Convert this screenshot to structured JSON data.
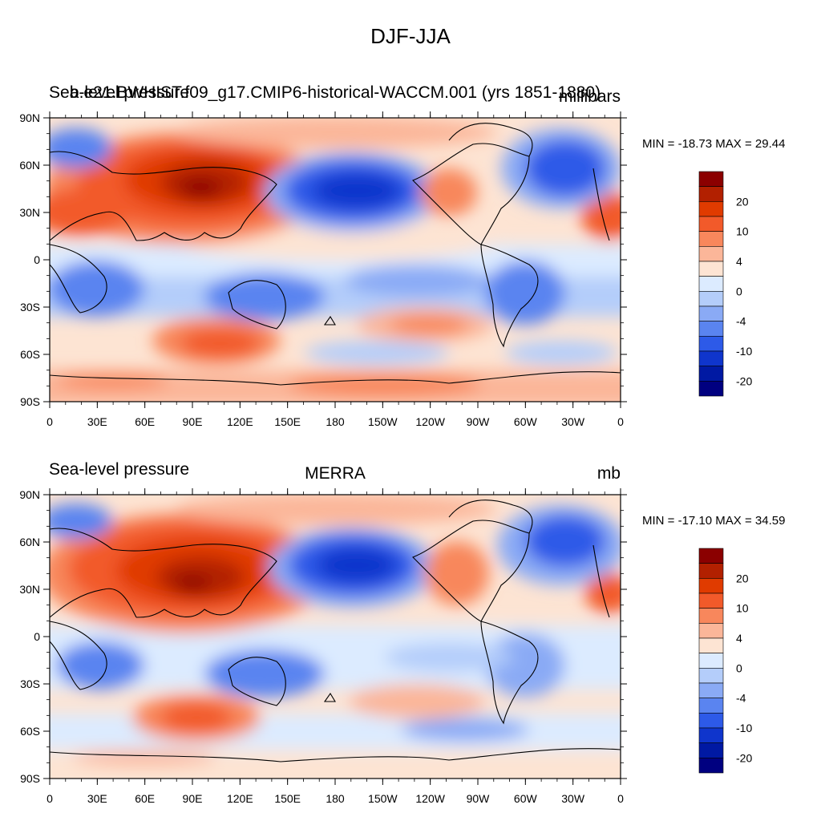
{
  "title": "DJF-JJA",
  "panels": [
    {
      "left_label": "Sea-level pressure",
      "center_label": "b.e21.BWHIST.f09_g17.CMIP6-historical-WACCM.001 (yrs 1851-1880)",
      "right_label": "millibars",
      "min_max": "MIN = -18.73 MAX =  29.44"
    },
    {
      "left_label": "Sea-level pressure",
      "center_label": "MERRA",
      "right_label": "mb",
      "min_max": "MIN = -17.10 MAX =  34.59"
    }
  ],
  "axes": {
    "lat_ticks": [
      "90N",
      "60N",
      "30N",
      "0",
      "30S",
      "60S",
      "90S"
    ],
    "lon_ticks": [
      "0",
      "30E",
      "60E",
      "90E",
      "120E",
      "150E",
      "180",
      "150W",
      "120W",
      "90W",
      "60W",
      "30W",
      "0"
    ]
  },
  "colorbar": {
    "labels": [
      "20",
      "10",
      "4",
      "0",
      "-4",
      "-10",
      "-20"
    ],
    "colors": [
      "#8b0000",
      "#b22000",
      "#e03b00",
      "#f25a2a",
      "#f8875c",
      "#fbb699",
      "#fde4d3",
      "#dcebff",
      "#b4cdfa",
      "#8aaaf5",
      "#5a84f0",
      "#2d5ae8",
      "#0f35cc",
      "#0019a3",
      "#000080"
    ]
  }
}
